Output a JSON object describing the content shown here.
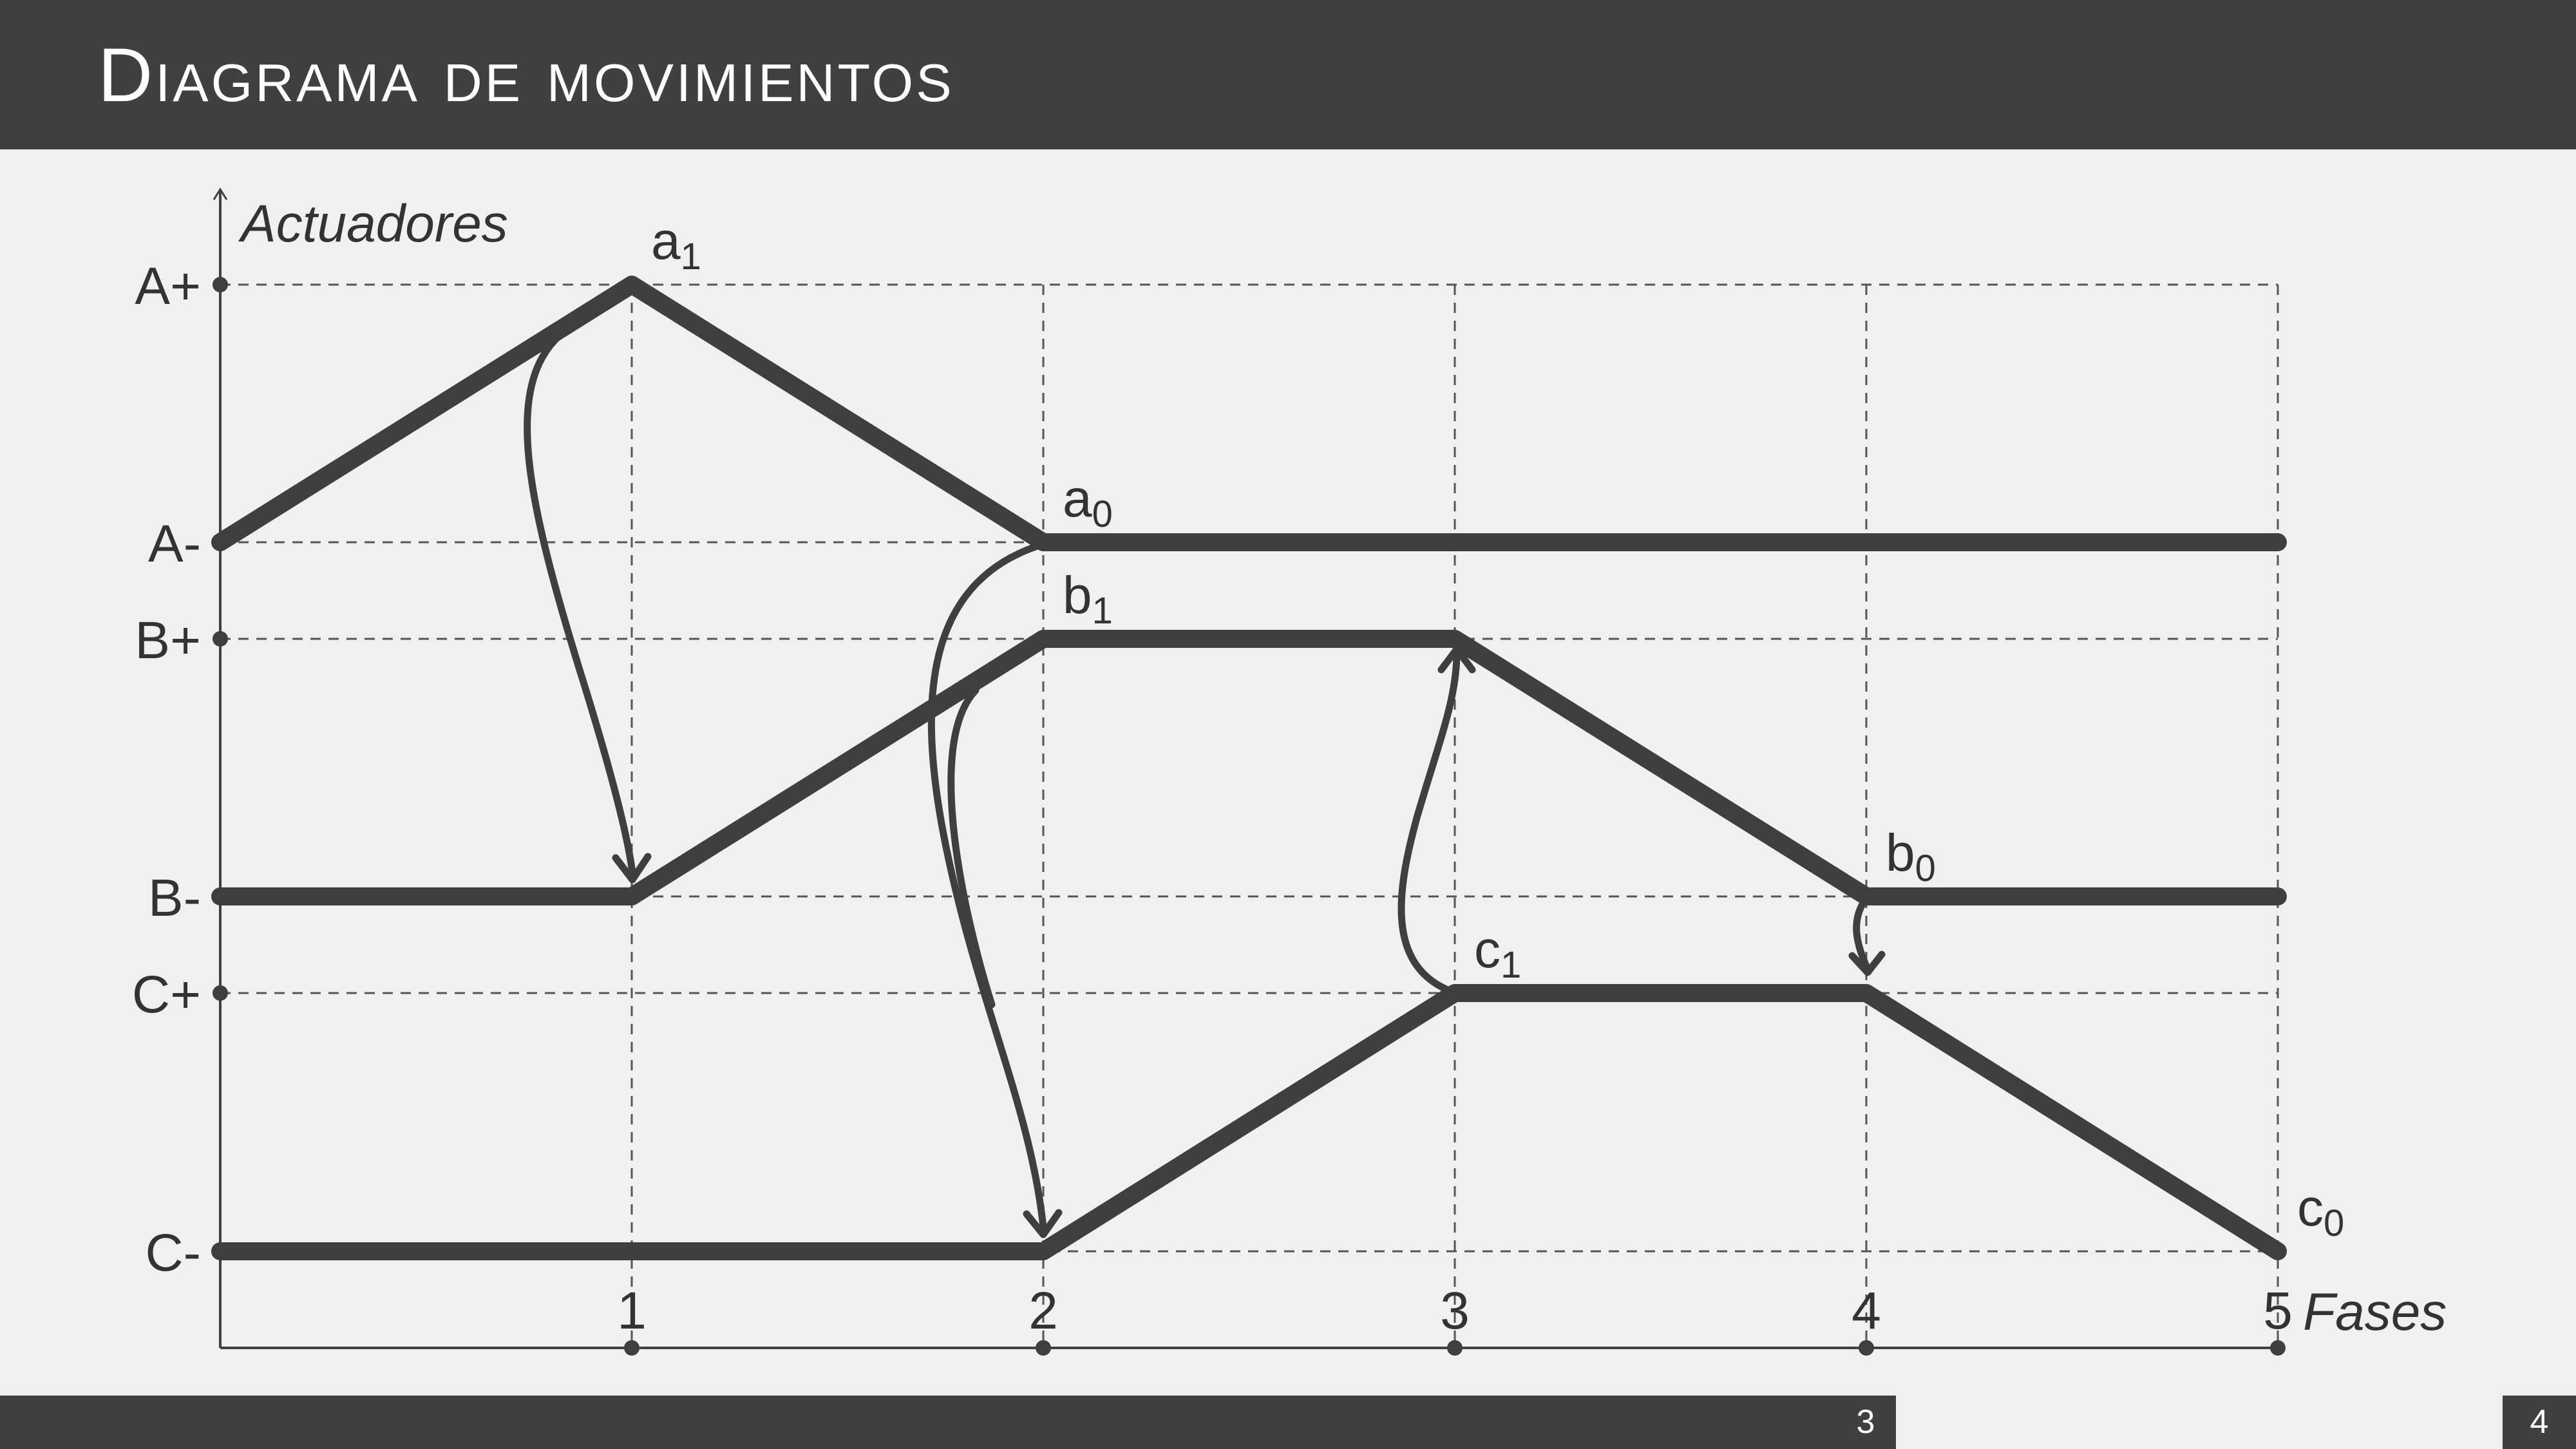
{
  "slide": {
    "title": "Diagrama de movimientos",
    "page_number": "3",
    "total_pages": "4"
  },
  "diagram": {
    "y_axis_label": "Actuadores",
    "x_axis_label": "Fases",
    "phases": [
      "1",
      "2",
      "3",
      "4",
      "5"
    ],
    "levels": [
      "A+",
      "A-",
      "B+",
      "B-",
      "C+",
      "C-"
    ],
    "actuators": [
      {
        "name": "A",
        "points": [
          [
            0,
            "A-"
          ],
          [
            1,
            "A+"
          ],
          [
            2,
            "A-"
          ],
          [
            5,
            "A-"
          ]
        ],
        "labels": [
          {
            "text": "a",
            "sub": "1",
            "phase": 1,
            "level": "A+"
          },
          {
            "text": "a",
            "sub": "0",
            "phase": 2,
            "level": "A-"
          }
        ]
      },
      {
        "name": "B",
        "points": [
          [
            0,
            "B-"
          ],
          [
            1,
            "B-"
          ],
          [
            2,
            "B+"
          ],
          [
            3,
            "B+"
          ],
          [
            4,
            "B-"
          ],
          [
            5,
            "B-"
          ]
        ],
        "labels": [
          {
            "text": "b",
            "sub": "1",
            "phase": 2,
            "level": "B+"
          },
          {
            "text": "b",
            "sub": "0",
            "phase": 4,
            "level": "B-"
          }
        ]
      },
      {
        "name": "C",
        "points": [
          [
            0,
            "C-"
          ],
          [
            2,
            "C-"
          ],
          [
            3,
            "C+"
          ],
          [
            4,
            "C+"
          ],
          [
            5,
            "C-"
          ]
        ],
        "labels": [
          {
            "text": "c",
            "sub": "1",
            "phase": 3,
            "level": "C+"
          },
          {
            "text": "c",
            "sub": "0",
            "phase": 5,
            "level": "C-"
          }
        ]
      }
    ],
    "signal_arrows": [
      {
        "from": "a1",
        "to": "B+ start at phase 1"
      },
      {
        "from": "a0",
        "to": "C+ start at phase 2"
      },
      {
        "from": "b1",
        "to": "C+ start at phase 2"
      },
      {
        "from": "c1",
        "to": "B- start at phase 3"
      },
      {
        "from": "b0",
        "to": "C- start at phase 4"
      }
    ],
    "colors": {
      "line": "#3f3f3f",
      "grid": "#555555",
      "background": "#f0f0f0",
      "bar": "#404040"
    }
  }
}
